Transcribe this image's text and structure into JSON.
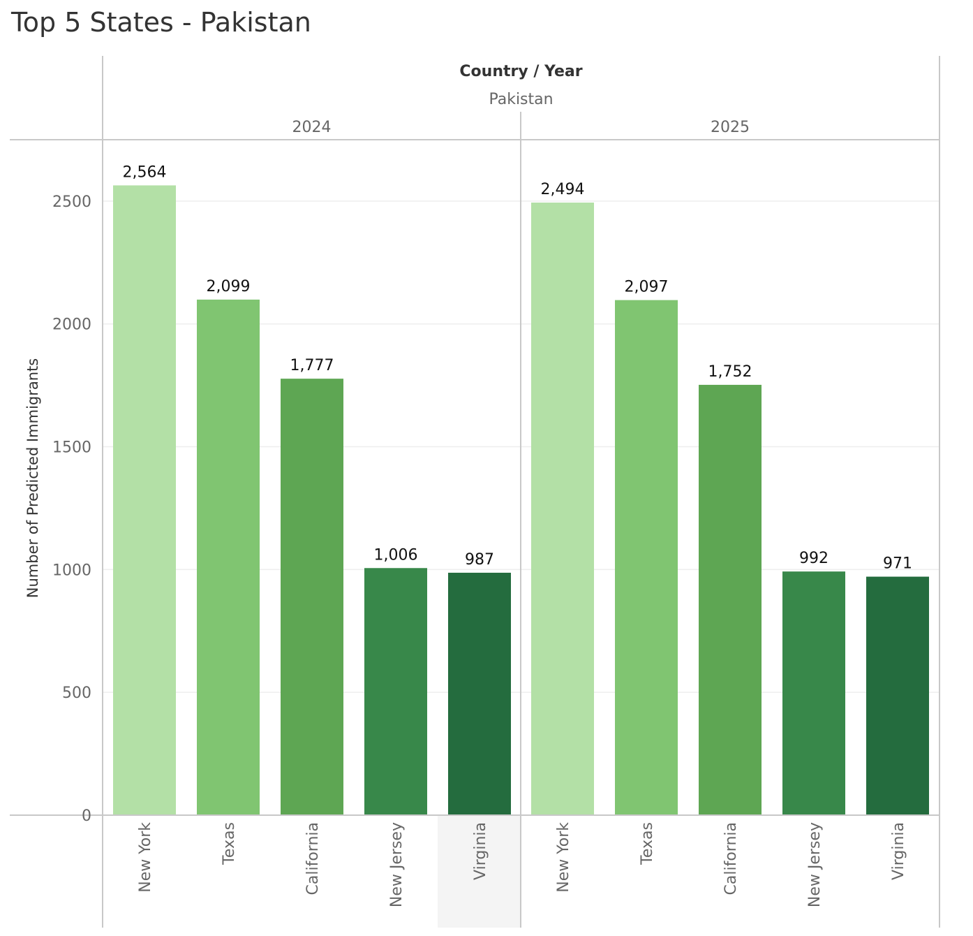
{
  "title": "Top 5 States - Pakistan",
  "header": {
    "label": "Country / Year",
    "country": "Pakistan"
  },
  "colors": {
    "axis": "#c8c8c8",
    "grid": "#eeeeee",
    "tick_text": "#666666",
    "label_text": "#111111",
    "highlight_column": "#f4f4f4"
  },
  "chart_data": {
    "type": "bar",
    "title": "Top 5 States - Pakistan",
    "ylabel": "Number of Predicted Immigrants",
    "xlabel": "",
    "ylim": [
      0,
      2750
    ],
    "yticks": [
      0,
      500,
      1000,
      1500,
      2000,
      2500
    ],
    "ytick_labels": [
      "0",
      "500",
      "1000",
      "1500",
      "2000",
      "2500"
    ],
    "grid": true,
    "legend": "none",
    "panels": [
      {
        "country": "Pakistan",
        "year": "2024",
        "categories": [
          "New York",
          "Texas",
          "California",
          "New Jersey",
          "Virginia"
        ],
        "values": [
          2564,
          2099,
          1777,
          1006,
          987
        ],
        "value_labels": [
          "2,564",
          "2,099",
          "1,777",
          "1,006",
          "987"
        ],
        "colors": [
          "#b3e0a6",
          "#80c571",
          "#5ea653",
          "#38884a",
          "#246c3e"
        ]
      },
      {
        "country": "Pakistan",
        "year": "2025",
        "categories": [
          "New York",
          "Texas",
          "California",
          "New Jersey",
          "Virginia"
        ],
        "values": [
          2494,
          2097,
          1752,
          992,
          971
        ],
        "value_labels": [
          "2,494",
          "2,097",
          "1,752",
          "992",
          "971"
        ],
        "colors": [
          "#b3e0a6",
          "#80c571",
          "#5ea653",
          "#38884a",
          "#246c3e"
        ]
      }
    ],
    "highlighted": {
      "panel": 0,
      "category": "Virginia"
    }
  }
}
